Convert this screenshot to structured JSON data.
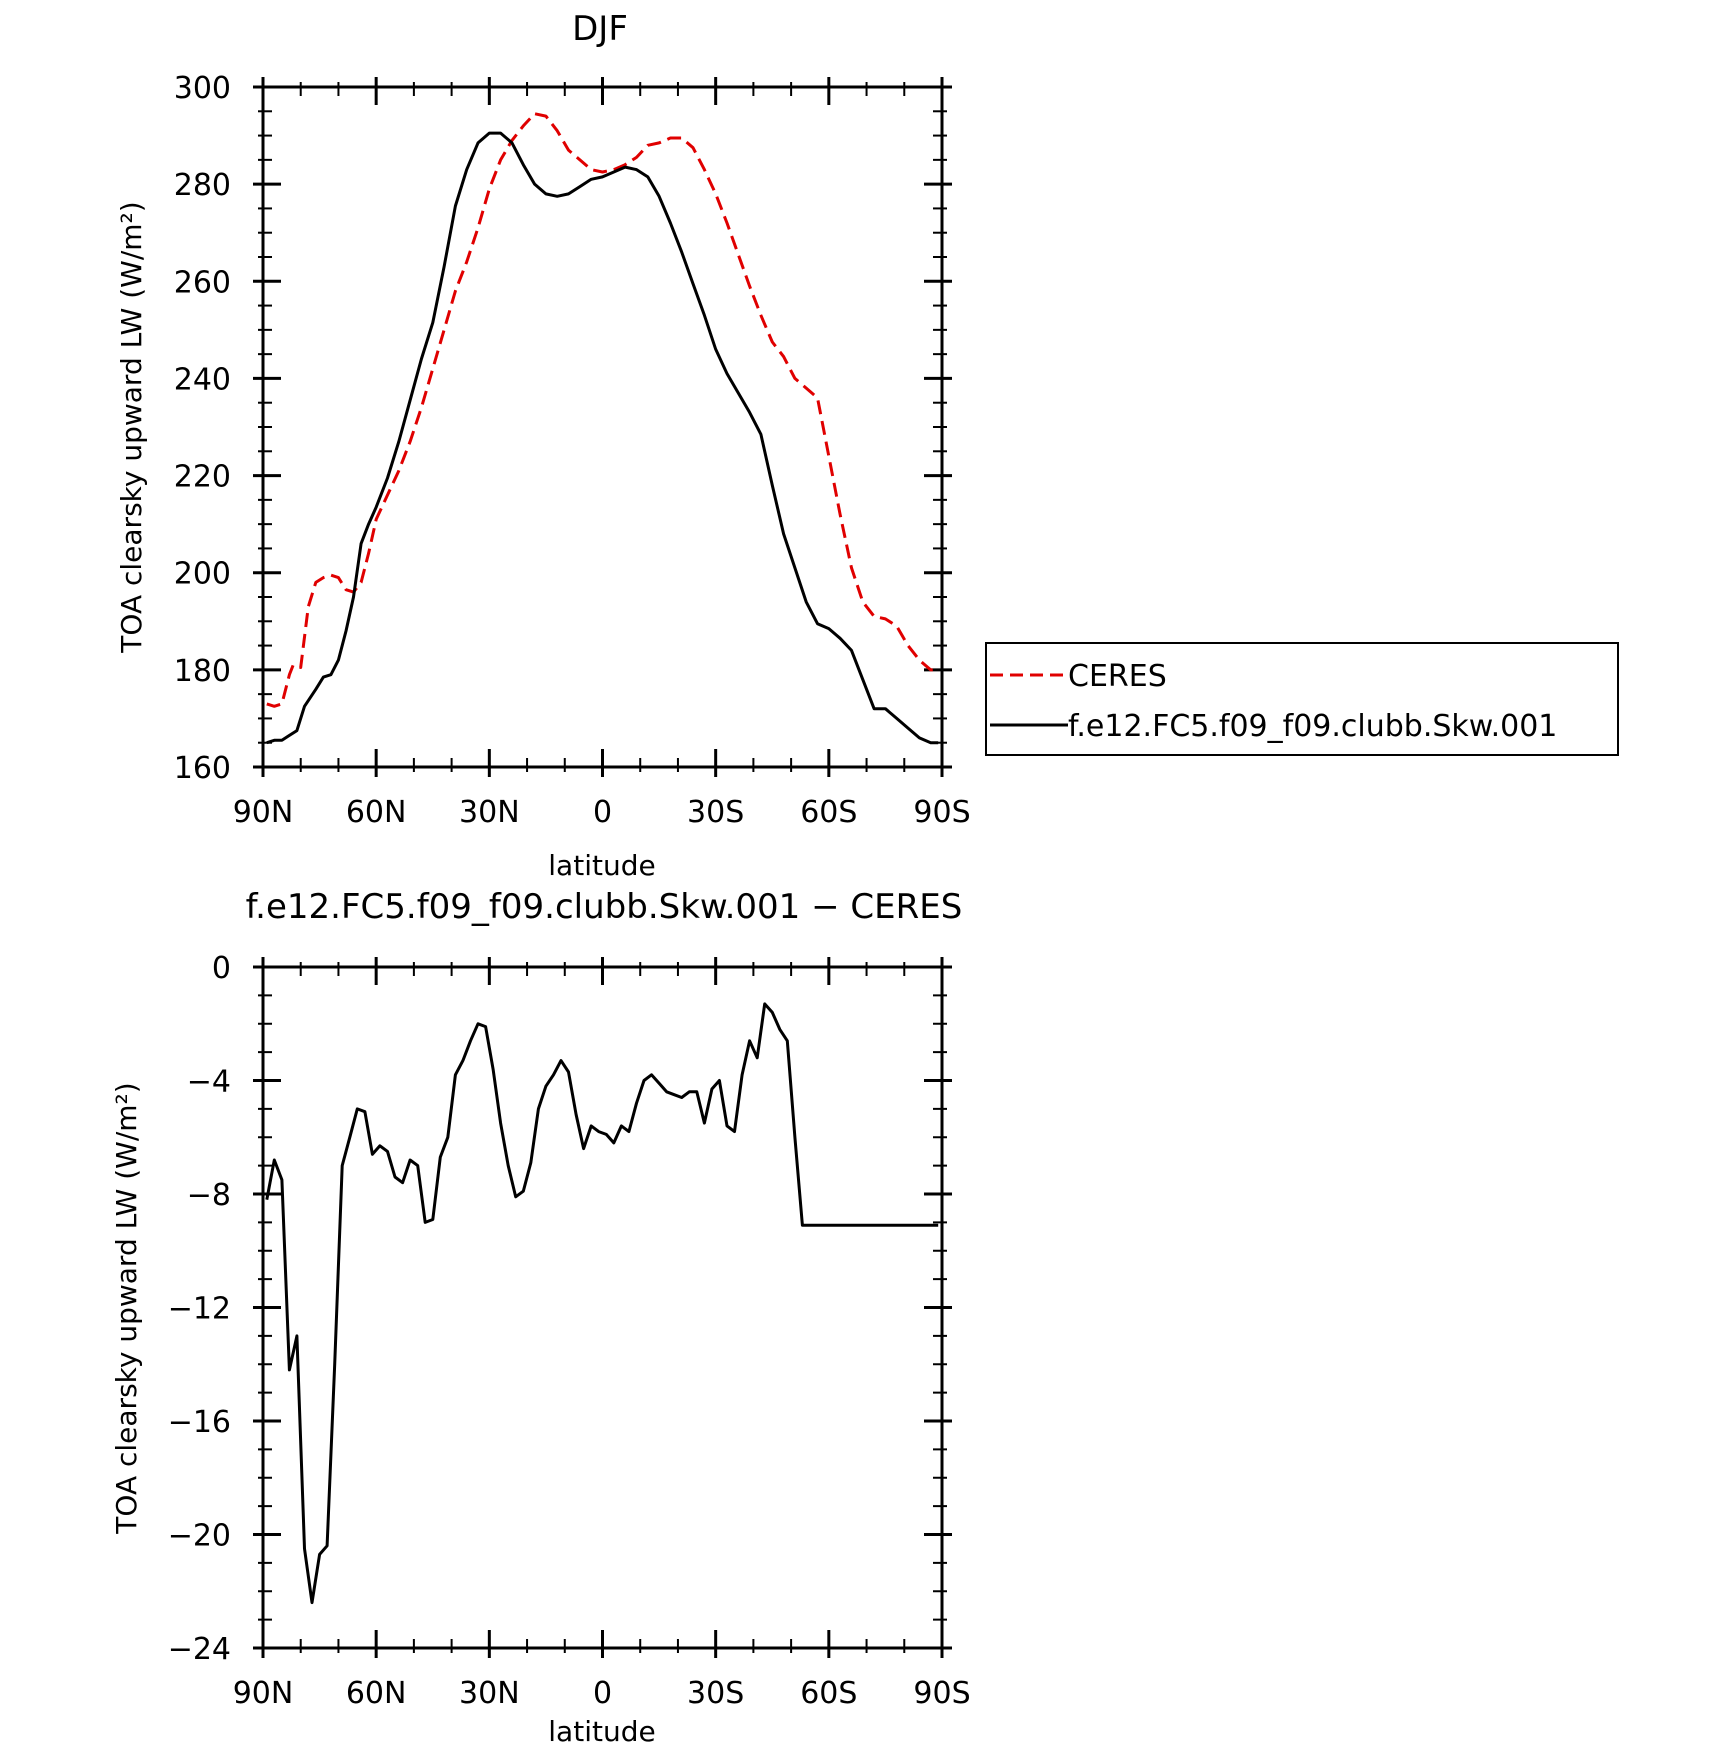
{
  "chart_data": [
    {
      "type": "line",
      "title": "DJF",
      "xlabel": "latitude",
      "ylabel": "TOA clearsky upward LW (W/m²)",
      "xlim": [
        -90,
        90
      ],
      "ylim": [
        160,
        300
      ],
      "x_ticks": [
        -90,
        -60,
        -30,
        0,
        30,
        60,
        90
      ],
      "x_tick_labels": [
        "90N",
        "60N",
        "30N",
        "0",
        "30S",
        "60S",
        "90S"
      ],
      "y_ticks": [
        160,
        180,
        200,
        220,
        240,
        260,
        280,
        300
      ],
      "y_tick_labels": [
        "160",
        "180",
        "200",
        "220",
        "240",
        "260",
        "280",
        "300"
      ],
      "grid": false,
      "legend_position": "right",
      "series": [
        {
          "name": "CERES",
          "color": "#e00000",
          "dash": "dashed",
          "x": [
            -89,
            -87,
            -85,
            -83,
            -82,
            -80,
            -78,
            -76,
            -74,
            -72,
            -70,
            -68,
            -66,
            -64,
            -62,
            -60,
            -57,
            -54,
            -51,
            -48,
            -45,
            -42,
            -39,
            -36,
            -33,
            -30,
            -27,
            -24,
            -21,
            -18,
            -15,
            -12,
            -9,
            -6,
            -3,
            0,
            3,
            6,
            9,
            12,
            15,
            18,
            21,
            24,
            27,
            30,
            33,
            36,
            39,
            42,
            45,
            48,
            51,
            54,
            57,
            60,
            63,
            66,
            69,
            72,
            75,
            78,
            81,
            84,
            87,
            89
          ],
          "y": [
            173,
            172.5,
            173,
            179,
            181,
            180.5,
            193,
            198,
            199,
            199.5,
            199,
            196.5,
            196,
            198,
            204,
            211,
            216,
            221,
            227,
            234,
            242,
            250,
            258,
            264,
            271,
            279,
            285,
            289,
            292,
            294.5,
            294,
            291,
            287,
            285,
            283,
            282.5,
            283,
            284,
            285.5,
            288,
            288.5,
            289.5,
            289.5,
            287.5,
            283,
            278,
            272,
            265.5,
            259,
            253,
            247.5,
            244.5,
            240,
            238,
            236,
            224,
            212,
            201,
            194,
            191,
            190.5,
            189,
            185,
            182,
            180,
            180
          ]
        },
        {
          "name": "f.e12.FC5.f09_f09.clubb.Skw.001",
          "color": "#000000",
          "dash": "solid",
          "x": [
            -89,
            -87,
            -85,
            -83,
            -81,
            -79,
            -76,
            -74,
            -72,
            -70,
            -68,
            -66,
            -64,
            -62,
            -60,
            -57,
            -54,
            -51,
            -48,
            -45,
            -42,
            -39,
            -36,
            -33,
            -30,
            -27,
            -24,
            -21,
            -18,
            -15,
            -12,
            -9,
            -6,
            -3,
            0,
            3,
            6,
            9,
            12,
            15,
            18,
            21,
            24,
            27,
            30,
            33,
            36,
            39,
            42,
            45,
            48,
            51,
            54,
            57,
            60,
            63,
            66,
            69,
            72,
            75,
            78,
            81,
            84,
            87,
            89
          ],
          "y": [
            165,
            165.5,
            165.5,
            166.5,
            167.5,
            172.5,
            176,
            178.5,
            179,
            182,
            188,
            195,
            206,
            210,
            213.5,
            219.5,
            227,
            235.5,
            244,
            251.5,
            263,
            275.5,
            283,
            288.5,
            290.5,
            290.5,
            288.5,
            284,
            280,
            278,
            277.5,
            278,
            279.5,
            281,
            281.5,
            282.5,
            283.5,
            283,
            281.5,
            277.5,
            272,
            266,
            259.5,
            253,
            246,
            241,
            237,
            233,
            228.5,
            218,
            208,
            201,
            194,
            189.5,
            188.5,
            186.5,
            184,
            178,
            172,
            172,
            170,
            168,
            166,
            165,
            165
          ]
        }
      ]
    },
    {
      "type": "line",
      "title": "f.e12.FC5.f09_f09.clubb.Skw.001 − CERES",
      "xlabel": "latitude",
      "ylabel": "TOA clearsky upward LW (W/m²)",
      "xlim": [
        -90,
        90
      ],
      "ylim": [
        -24,
        0
      ],
      "x_ticks": [
        -90,
        -60,
        -30,
        0,
        30,
        60,
        90
      ],
      "x_tick_labels": [
        "90N",
        "60N",
        "30N",
        "0",
        "30S",
        "60S",
        "90S"
      ],
      "y_ticks": [
        -24,
        -20,
        -16,
        -12,
        -8,
        -4,
        0
      ],
      "y_tick_labels": [
        "−24",
        "−20",
        "−16",
        "−12",
        "−8",
        "−4",
        "0"
      ],
      "grid": false,
      "series": [
        {
          "color": "#000000",
          "dash": "solid",
          "x": [
            -89,
            -87,
            -85,
            -83,
            -81,
            -79,
            -77,
            -75,
            -73,
            -71,
            -69,
            -67,
            -65,
            -63,
            -61,
            -59,
            -57,
            -55,
            -53,
            -51,
            -49,
            -47,
            -45,
            -43,
            -41,
            -39,
            -37,
            -35,
            -33,
            -31,
            -29,
            -27,
            -25,
            -23,
            -21,
            -19,
            -17,
            -15,
            -13,
            -11,
            -9,
            -7,
            -5,
            -3,
            -1,
            1,
            3,
            5,
            7,
            9,
            11,
            13,
            15,
            17,
            19,
            21,
            23,
            25,
            27,
            29,
            31,
            33,
            35,
            37,
            39,
            41,
            43,
            45,
            47,
            49,
            51,
            53,
            55,
            57,
            59,
            61,
            63,
            65,
            67,
            69,
            71,
            73,
            75,
            77,
            79,
            81,
            83,
            85,
            87,
            89
          ],
          "y": [
            -8.2,
            -6.8,
            -7.5,
            -14.2,
            -13,
            -20.5,
            -22.4,
            -20.7,
            -20.4,
            -14,
            -7,
            -6,
            -5,
            -5.1,
            -6.6,
            -6.3,
            -6.5,
            -7.4,
            -7.6,
            -6.8,
            -7,
            -9,
            -8.9,
            -6.7,
            -6,
            -3.8,
            -3.3,
            -2.6,
            -2,
            -2.1,
            -3.6,
            -5.5,
            -7,
            -8.1,
            -7.9,
            -6.9,
            -5,
            -4.2,
            -3.8,
            -3.3,
            -3.7,
            -5.2,
            -6.4,
            -5.6,
            -5.8,
            -5.9,
            -6.2,
            -5.6,
            -5.8,
            -4.8,
            -4,
            -3.8,
            -4.1,
            -4.4,
            -4.5,
            -4.6,
            -4.4,
            -4.4,
            -5.5,
            -4.3,
            -4,
            -5.6,
            -5.8,
            -3.8,
            -2.6,
            -3.2,
            -1.3,
            -1.6,
            -2.2,
            -2.6,
            -6,
            -9.1,
            -9.1,
            -9.1,
            -9.1,
            -9.1,
            -9.1,
            -9.1,
            -9.1,
            -9.1,
            -9.1,
            -9.1,
            -9.1,
            -9.1,
            -9.1,
            -9.1,
            -9.1,
            -9.1,
            -9.1,
            -9.1
          ]
        }
      ]
    }
  ]
}
